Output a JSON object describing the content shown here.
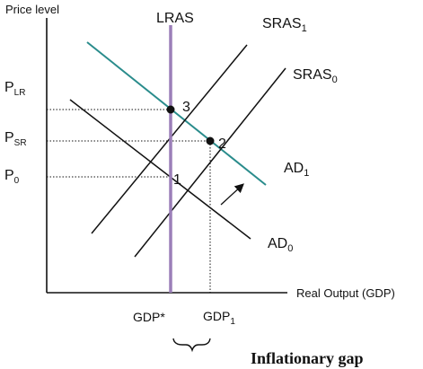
{
  "axes": {
    "y_label": "Price level",
    "x_label": "Real Output (GDP)"
  },
  "curves": {
    "lras": "LRAS",
    "sras1": {
      "base": "SRAS",
      "sub": "1"
    },
    "sras0": {
      "base": "SRAS",
      "sub": "0"
    },
    "ad1": {
      "base": "AD",
      "sub": "1"
    },
    "ad0": {
      "base": "AD",
      "sub": "0"
    }
  },
  "prices": {
    "p_lr": {
      "base": "P",
      "sub": "LR"
    },
    "p_sr": {
      "base": "P",
      "sub": "SR"
    },
    "p0": {
      "base": "P",
      "sub": "0"
    }
  },
  "outputs": {
    "gdp_star": "GDP*",
    "gdp1": {
      "base": "GDP",
      "sub": "1"
    }
  },
  "points": [
    "3",
    "2",
    "1"
  ],
  "gap_label": "Inflationary gap",
  "colors": {
    "lras": "#9b7fb8",
    "ad1": "#2a8c8c",
    "lines": "#111111"
  }
}
